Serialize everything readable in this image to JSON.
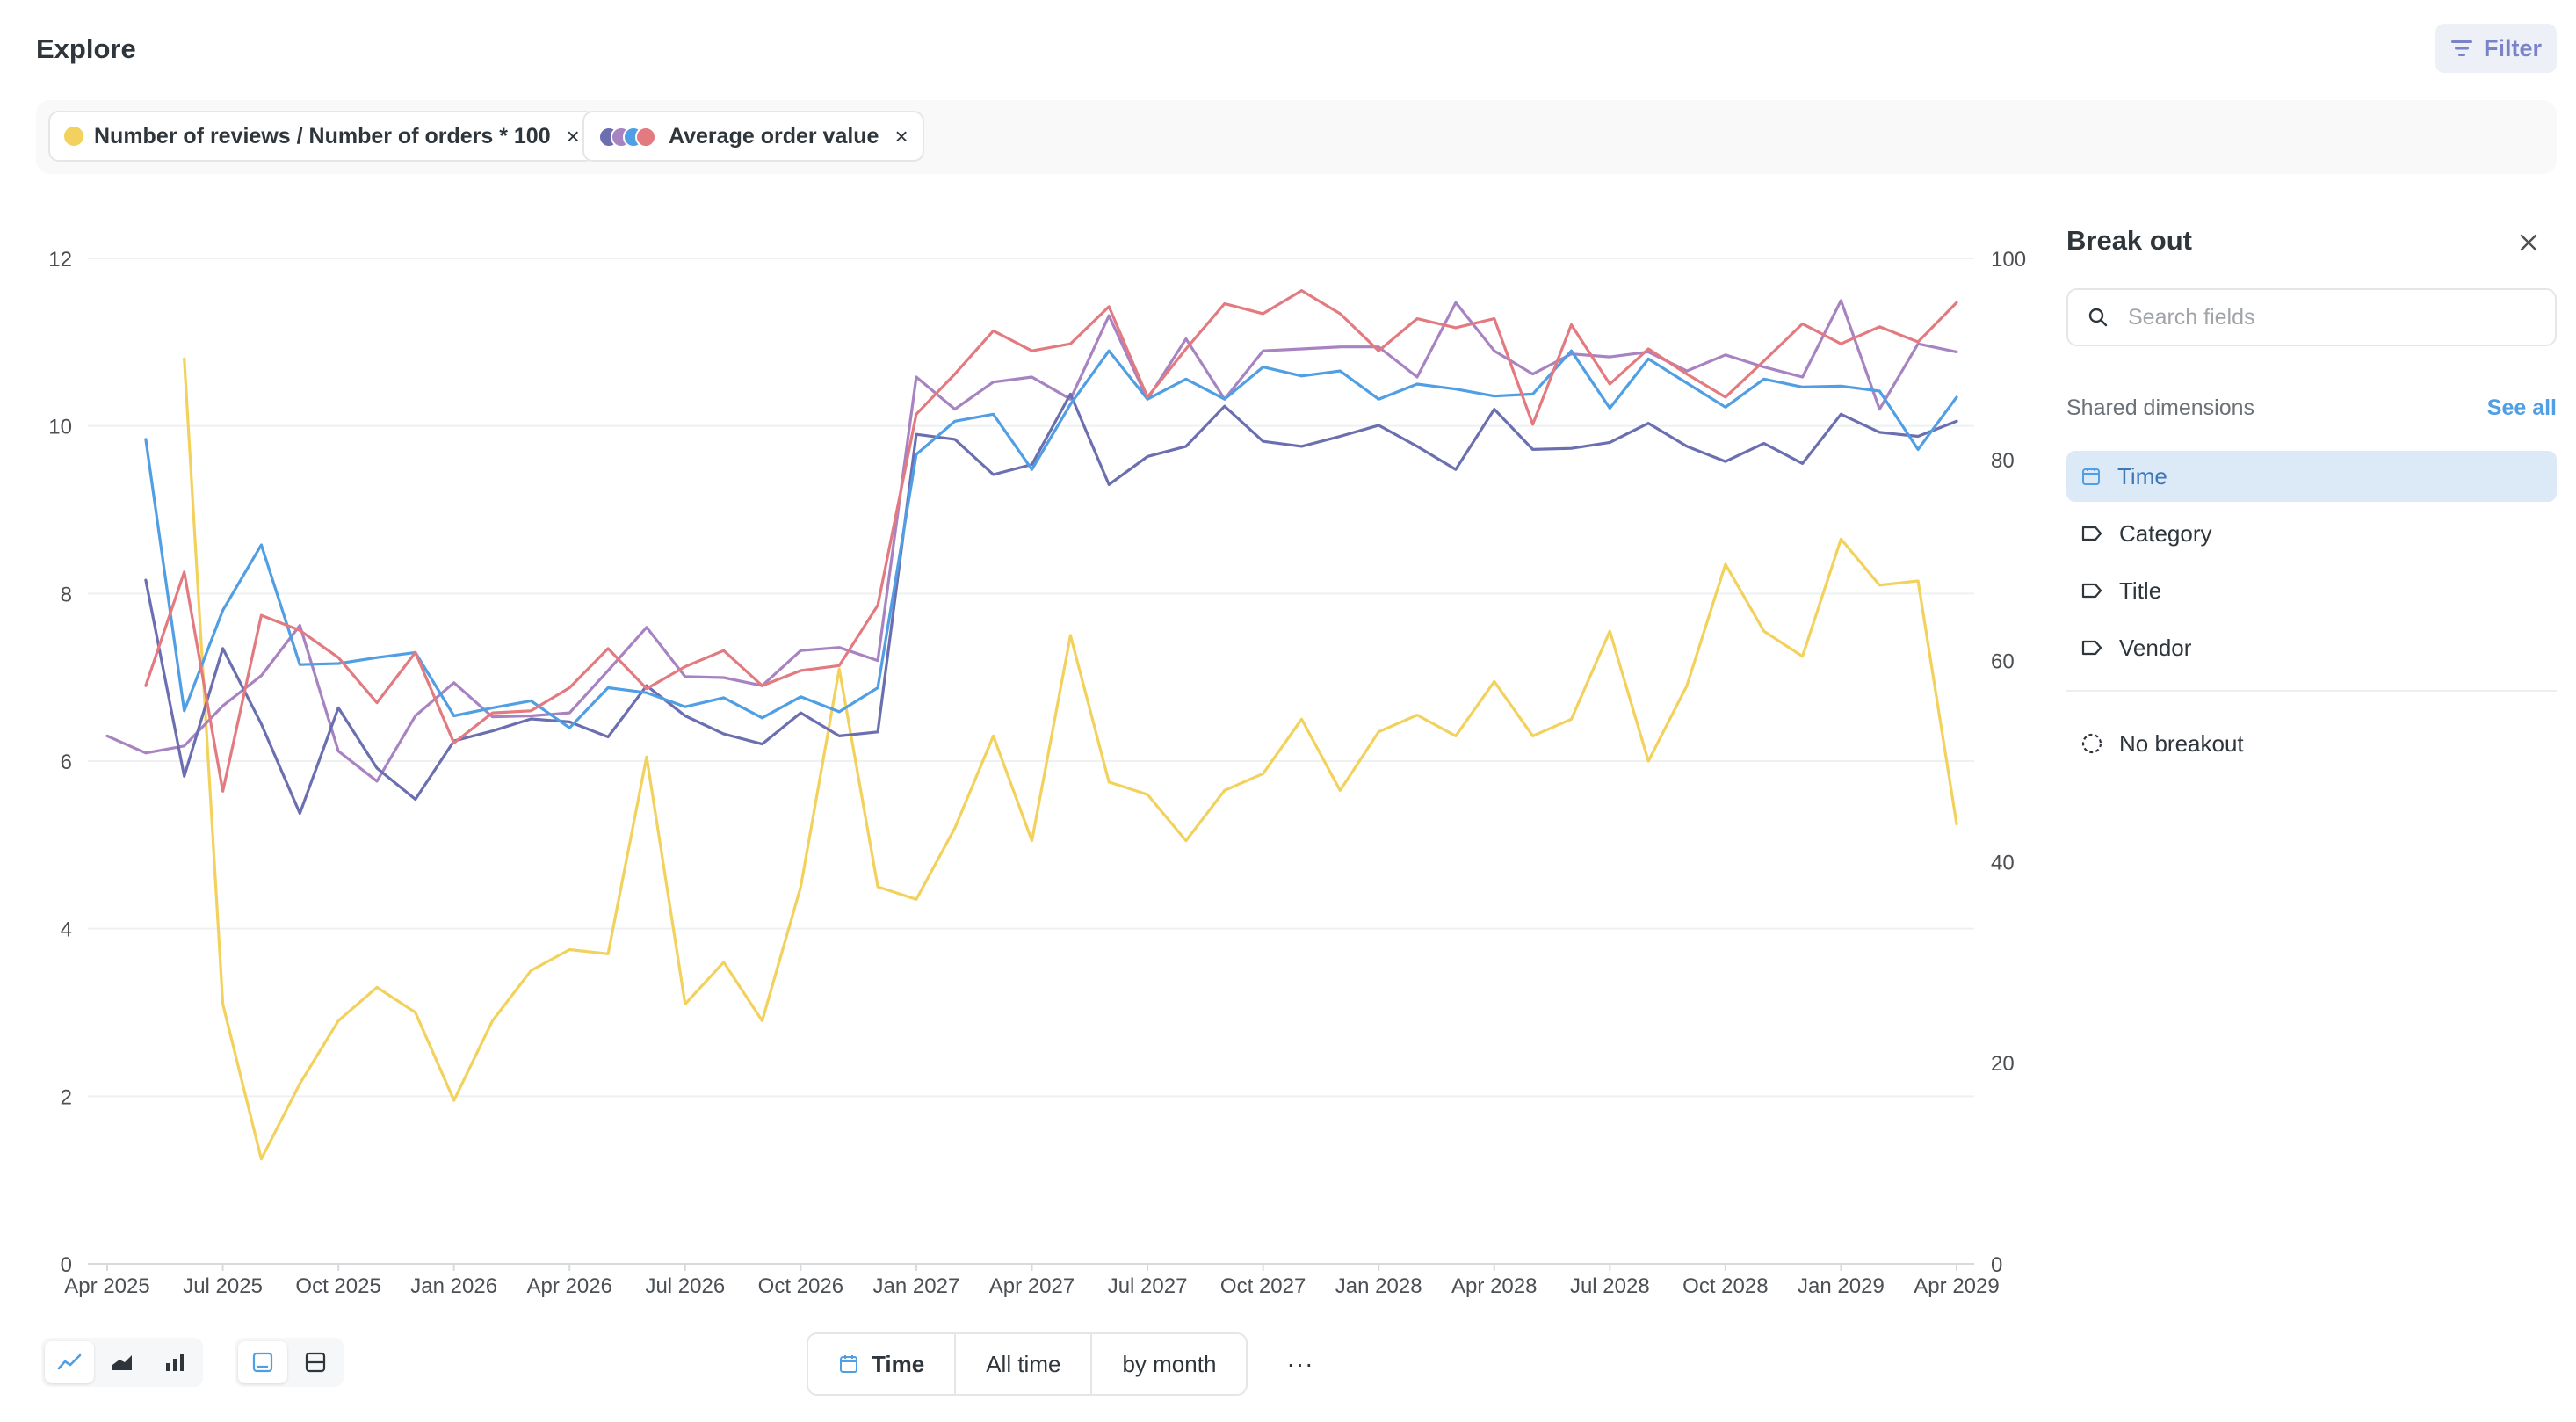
{
  "header": {
    "title": "Explore",
    "filter_label": "Filter"
  },
  "pills": [
    {
      "label": "Number of reviews / Number of orders * 100",
      "close": "×",
      "color": "#f2d15c"
    },
    {
      "label": "Average order value",
      "close": "×",
      "colors": [
        "#6b6fb0",
        "#a883c1",
        "#509ee3",
        "#e37a80"
      ]
    }
  ],
  "chart_data": {
    "type": "line",
    "x_ticks": [
      "Apr 2025",
      "Jul 2025",
      "Oct 2025",
      "Jan 2026",
      "Apr 2026",
      "Jul 2026",
      "Oct 2026",
      "Jan 2027",
      "Apr 2027",
      "Jul 2027",
      "Oct 2027",
      "Jan 2028",
      "Apr 2028",
      "Jul 2028",
      "Oct 2028",
      "Jan 2029",
      "Apr 2029"
    ],
    "x_start": "2025-04",
    "x_months": 49,
    "y_left": {
      "ticks": [
        "0",
        "2",
        "4",
        "6",
        "8",
        "10",
        "12"
      ],
      "range": [
        0,
        12
      ]
    },
    "y_right": {
      "ticks": [
        "0",
        "20",
        "40",
        "60",
        "80",
        "100"
      ],
      "range": [
        0,
        100
      ]
    },
    "grid": true,
    "series": [
      {
        "name": "Number of reviews / Number of orders * 100",
        "axis": "left",
        "color": "#f2d15c",
        "start": "2025-06",
        "values": [
          10.8,
          3.1,
          1.25,
          2.15,
          2.9,
          3.3,
          3.0,
          1.95,
          2.9,
          3.5,
          3.75,
          3.7,
          6.05,
          3.1,
          3.6,
          2.9,
          4.5,
          7.1,
          4.5,
          4.35,
          5.2,
          6.3,
          5.05,
          7.5,
          5.75,
          5.6,
          5.05,
          5.65,
          5.85,
          6.5,
          5.65,
          6.35,
          6.55,
          6.3,
          6.95,
          6.3,
          6.5,
          7.55,
          6.0,
          6.9,
          8.35,
          7.55,
          7.25,
          8.65,
          8.1,
          8.15,
          5.25
        ]
      },
      {
        "name": "",
        "axis": "right",
        "color": "#a883c1",
        "start": "2025-04",
        "values": [
          52.5,
          50.8,
          51.5,
          55.5,
          58.5,
          63.5,
          51.0,
          48.0,
          54.5,
          57.8,
          54.4,
          54.5,
          54.8,
          59.0,
          63.3,
          58.4,
          58.3,
          57.5,
          61.0,
          61.3,
          60.0,
          88.2,
          85.0,
          87.7,
          88.2,
          86.0,
          94.3,
          86.0,
          92.0,
          86.0,
          90.8,
          91.0,
          91.2,
          91.2,
          88.2,
          95.6,
          90.8,
          88.5,
          90.5,
          90.2,
          90.7,
          88.8,
          90.4,
          89.2,
          88.2,
          95.8,
          85.0,
          91.5,
          90.7
        ]
      },
      {
        "name": "",
        "axis": "right",
        "color": "#6b6fb0",
        "start": "2025-05",
        "values": [
          68.0,
          48.5,
          61.2,
          53.7,
          44.8,
          55.3,
          49.3,
          46.2,
          52.0,
          53.0,
          54.2,
          53.9,
          52.4,
          57.5,
          54.5,
          52.7,
          51.7,
          54.8,
          52.5,
          52.9,
          82.5,
          82.0,
          78.5,
          79.5,
          86.5,
          77.5,
          80.3,
          81.3,
          85.3,
          81.8,
          81.3,
          82.3,
          83.4,
          81.3,
          79.0,
          85.0,
          81.0,
          81.1,
          81.7,
          83.6,
          81.3,
          79.8,
          81.6,
          79.6,
          84.5,
          82.7,
          82.3,
          83.8
        ]
      },
      {
        "name": "",
        "axis": "right",
        "color": "#509ee3",
        "start": "2025-05",
        "values": [
          82.0,
          55.0,
          65.0,
          71.5,
          59.6,
          59.7,
          60.3,
          60.8,
          54.5,
          55.3,
          56.0,
          53.3,
          57.3,
          56.8,
          55.4,
          56.3,
          54.3,
          56.4,
          54.9,
          57.3,
          80.5,
          83.8,
          84.5,
          79.0,
          85.5,
          90.8,
          86.0,
          88.0,
          86.0,
          89.2,
          88.3,
          88.8,
          86.0,
          87.5,
          87.0,
          86.3,
          86.5,
          90.8,
          85.1,
          90.0,
          87.6,
          85.2,
          88.0,
          87.2,
          87.3,
          86.8,
          81.0,
          86.2
        ]
      },
      {
        "name": "",
        "axis": "right",
        "color": "#e37a80",
        "start": "2025-05",
        "values": [
          57.5,
          68.8,
          47.0,
          64.5,
          63.0,
          60.3,
          55.8,
          60.8,
          51.8,
          54.8,
          55.0,
          57.3,
          61.2,
          57.2,
          59.4,
          61.0,
          57.5,
          59.0,
          59.5,
          65.5,
          84.5,
          88.5,
          92.8,
          90.8,
          91.5,
          95.2,
          86.2,
          91.0,
          95.5,
          94.5,
          96.8,
          94.5,
          90.8,
          94.0,
          93.1,
          94.0,
          83.5,
          93.4,
          87.5,
          91.0,
          88.5,
          86.2,
          89.8,
          93.5,
          91.5,
          93.2,
          91.7,
          95.6
        ]
      }
    ]
  },
  "bottom": {
    "time_label": "Time",
    "range_label": "All time",
    "granularity_label": "by month",
    "more_label": "···"
  },
  "sidebar": {
    "title": "Break out",
    "search_placeholder": "Search fields",
    "shared_label": "Shared dimensions",
    "see_all": "See all",
    "items": [
      {
        "label": "Time",
        "icon": "calendar-icon",
        "active": true
      },
      {
        "label": "Category",
        "icon": "tag-icon",
        "active": false
      },
      {
        "label": "Title",
        "icon": "tag-icon",
        "active": false
      },
      {
        "label": "Vendor",
        "icon": "tag-icon",
        "active": false
      }
    ],
    "no_breakout": "No breakout"
  }
}
